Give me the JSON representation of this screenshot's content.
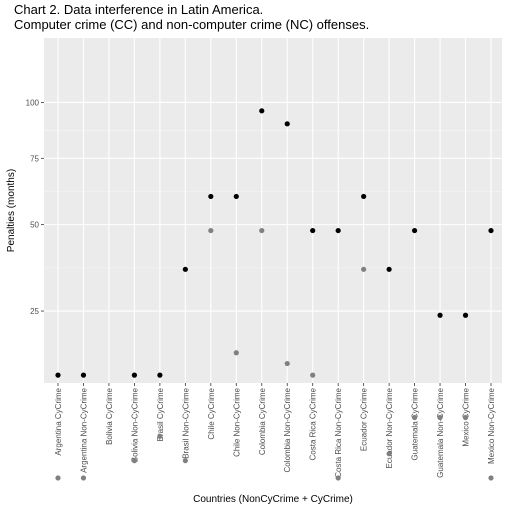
{
  "chart_data": {
    "type": "scatter",
    "title": "Chart 2. Data interference in Latin America.",
    "subtitle": "Computer crime (CC) and non-computer crime (NC) offenses.",
    "xlabel": "Countries (NonCyCrime + CyCrime)",
    "ylabel": "Penalties (months)",
    "y_scale": "sqrt",
    "yticks": [
      25,
      50,
      75,
      100
    ],
    "ylim": [
      0.25,
      100
    ],
    "grid": true,
    "categories": [
      "Argentina CyCrime",
      "Argentina Non-CyCrime",
      "Bolivia CyCrime",
      "Bolivia Non-CyCrime",
      "Brasil CyCrime",
      "Brasil Non-CyCrime",
      "Chile CyCrime",
      "Chile Non-CyCrime",
      "Colombia CyCrime",
      "Colombia Non-CyCrime",
      "Costa Rica CyCrime",
      "Costa Rica Non-CyCrime",
      "Ecuador CyCrime",
      "Ecuador Non-CyCrime",
      "Guatemala CyCrime",
      "Guatemala Non-CyCrime",
      "Mexico CyCrime",
      "Mexico Non-CyCrime"
    ],
    "series": [
      {
        "color": "#000000",
        "values": [
          12,
          12,
          null,
          12,
          12,
          36,
          60,
          60,
          96,
          90,
          48,
          48,
          60,
          36,
          48,
          24,
          24,
          48
        ]
      },
      {
        "color": "#808080",
        "values": [
          1,
          1,
          null,
          2,
          4,
          2,
          48,
          16,
          48,
          14,
          12,
          1,
          36,
          2.5,
          6,
          6,
          6,
          1
        ]
      }
    ]
  }
}
